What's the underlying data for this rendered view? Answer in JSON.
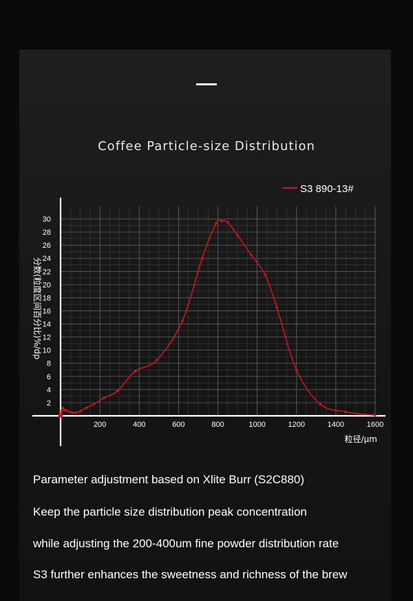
{
  "page": {
    "title": "Coffee Particle-size Distribution",
    "paragraphs": [
      "Parameter adjustment based on Xlite Burr (S2C880)",
      "Keep the particle size distribution peak concentration",
      "while adjusting the 200-400um fine powder distribution rate",
      "S3 further enhances the sweetness and richness of the brew"
    ]
  },
  "colors": {
    "background": "#0a0a0a",
    "panel": "#1b1b1b",
    "series": "#d0141c",
    "axis": "#ffffff",
    "grid": "#6a6a6a"
  },
  "chart_data": {
    "type": "line",
    "title": "",
    "xlabel": "粒径/μm",
    "ylabel": "分数(粒度区间百分比)%/dp",
    "xlim": [
      0,
      1600
    ],
    "ylim": [
      0,
      30
    ],
    "xticks": [
      200,
      400,
      600,
      800,
      1000,
      1200,
      1400,
      1600
    ],
    "yticks": [
      2,
      4,
      6,
      8,
      10,
      12,
      14,
      16,
      18,
      20,
      22,
      24,
      26,
      28,
      30
    ],
    "grid": true,
    "legend": "top-right",
    "series": [
      {
        "name": "S3 890-13#",
        "x": [
          0,
          5,
          12,
          20,
          30,
          45,
          60,
          80,
          100,
          130,
          170,
          220,
          290,
          380,
          490,
          620,
          720,
          790,
          820,
          850,
          900,
          970,
          1040,
          1100,
          1200,
          1320,
          1450,
          1600
        ],
        "y": [
          0.1,
          0.8,
          1.2,
          0.9,
          0.8,
          0.6,
          0.5,
          0.5,
          0.7,
          1.2,
          1.8,
          2.7,
          3.8,
          6.8,
          8.5,
          14.5,
          24.0,
          29.3,
          29.7,
          29.5,
          27.5,
          24.5,
          21.5,
          16.5,
          7.0,
          1.8,
          0.6,
          0.1
        ]
      }
    ]
  }
}
